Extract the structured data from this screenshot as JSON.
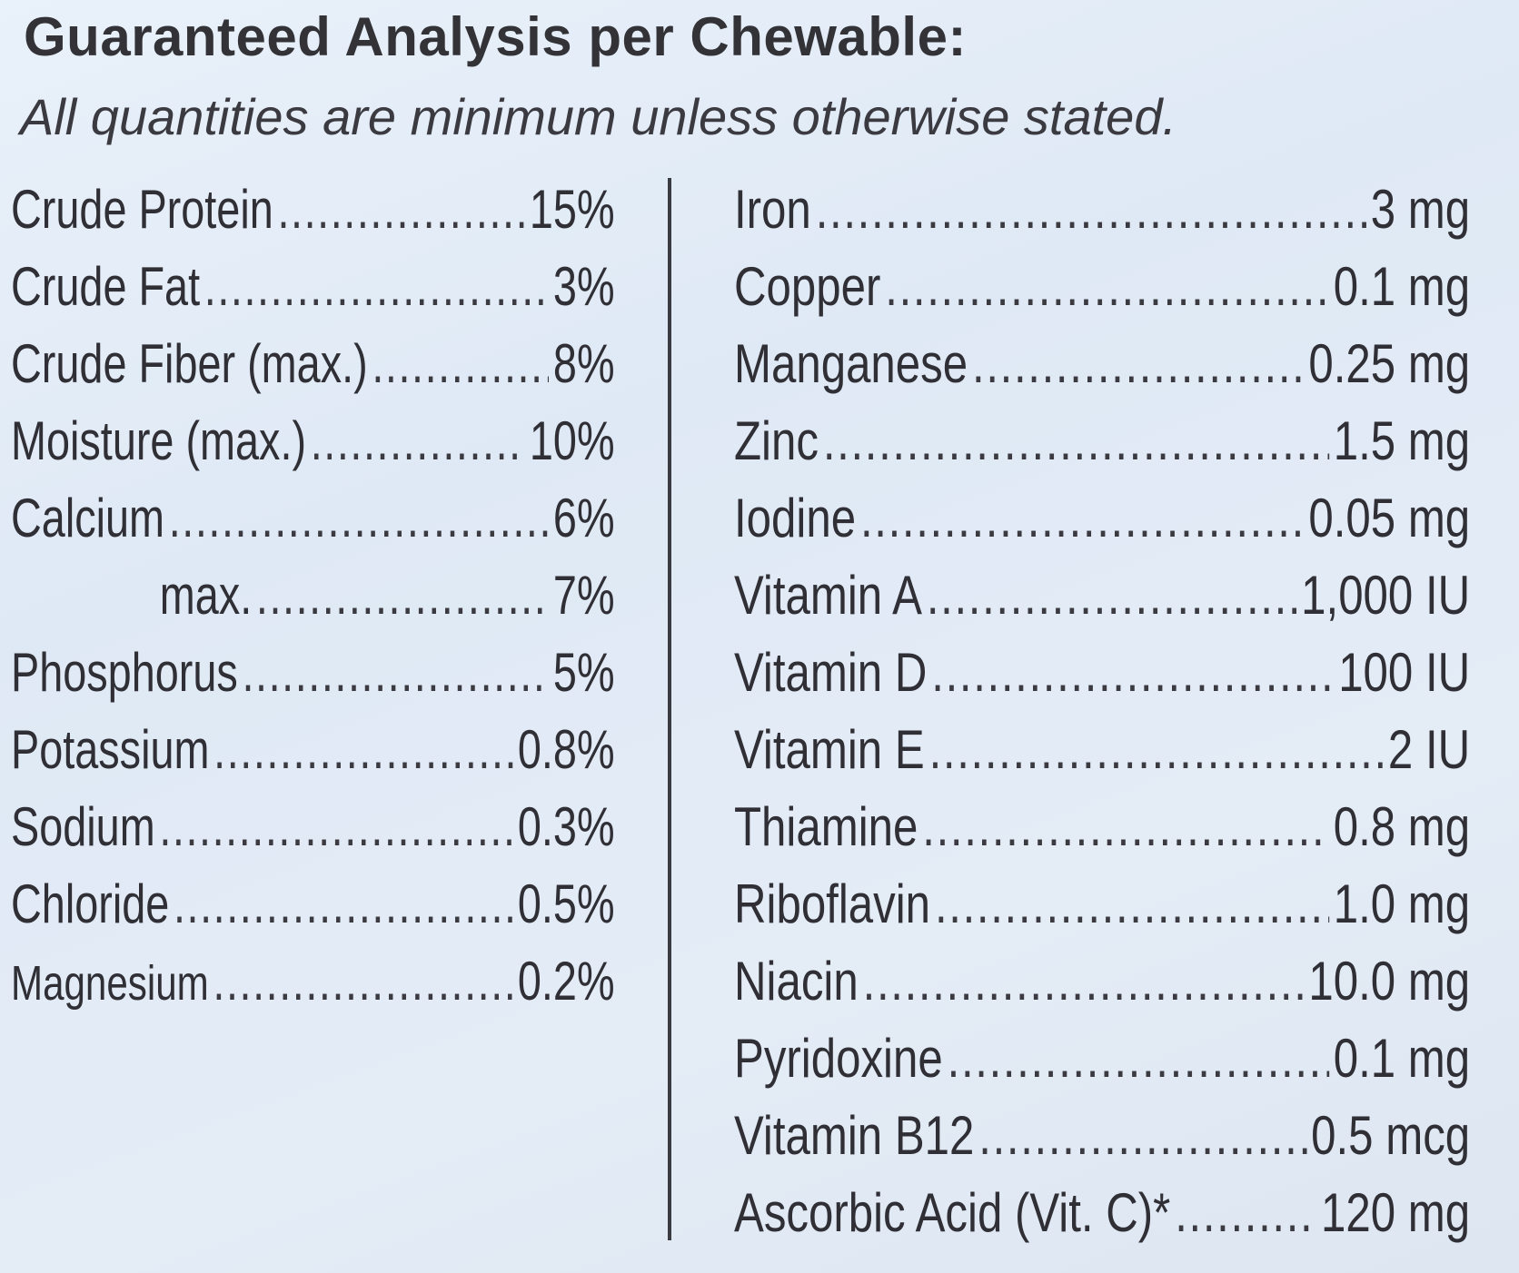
{
  "header": {
    "title": "Guaranteed Analysis per Chewable:",
    "subtitle": "All quantities are minimum unless otherwise stated."
  },
  "left_column": [
    {
      "name": "Crude Protein",
      "value": "15%"
    },
    {
      "name": "Crude Fat",
      "value": "3%"
    },
    {
      "name": "Crude Fiber (max.)",
      "value": "8%"
    },
    {
      "name": "Moisture (max.)",
      "value": "10%"
    },
    {
      "name": "Calcium",
      "value": "6%"
    },
    {
      "name": "max.",
      "value": "7%"
    },
    {
      "name": "Phosphorus",
      "value": "5%"
    },
    {
      "name": "Potassium",
      "value": "0.8%"
    },
    {
      "name": "Sodium",
      "value": "0.3%"
    },
    {
      "name": "Chloride",
      "value": "0.5%"
    },
    {
      "name": "Magnesium",
      "value": "0.2%"
    }
  ],
  "right_column": [
    {
      "name": "Iron",
      "value": "3 mg"
    },
    {
      "name": "Copper",
      "value": "0.1 mg"
    },
    {
      "name": "Manganese",
      "value": "0.25 mg"
    },
    {
      "name": "Zinc",
      "value": "1.5 mg"
    },
    {
      "name": "Iodine",
      "value": "0.05 mg"
    },
    {
      "name": "Vitamin A",
      "value": "1,000 IU"
    },
    {
      "name": "Vitamin D",
      "value": "100 IU"
    },
    {
      "name": "Vitamin E",
      "value": "2 IU"
    },
    {
      "name": "Thiamine",
      "value": "0.8 mg"
    },
    {
      "name": "Riboflavin",
      "value": "1.0 mg"
    },
    {
      "name": "Niacin",
      "value": "10.0 mg"
    },
    {
      "name": "Pyridoxine",
      "value": "0.1 mg"
    },
    {
      "name": "Vitamin B12",
      "value": "0.5 mcg"
    },
    {
      "name": "Ascorbic Acid (Vit. C)*",
      "value": "120 mg"
    }
  ]
}
